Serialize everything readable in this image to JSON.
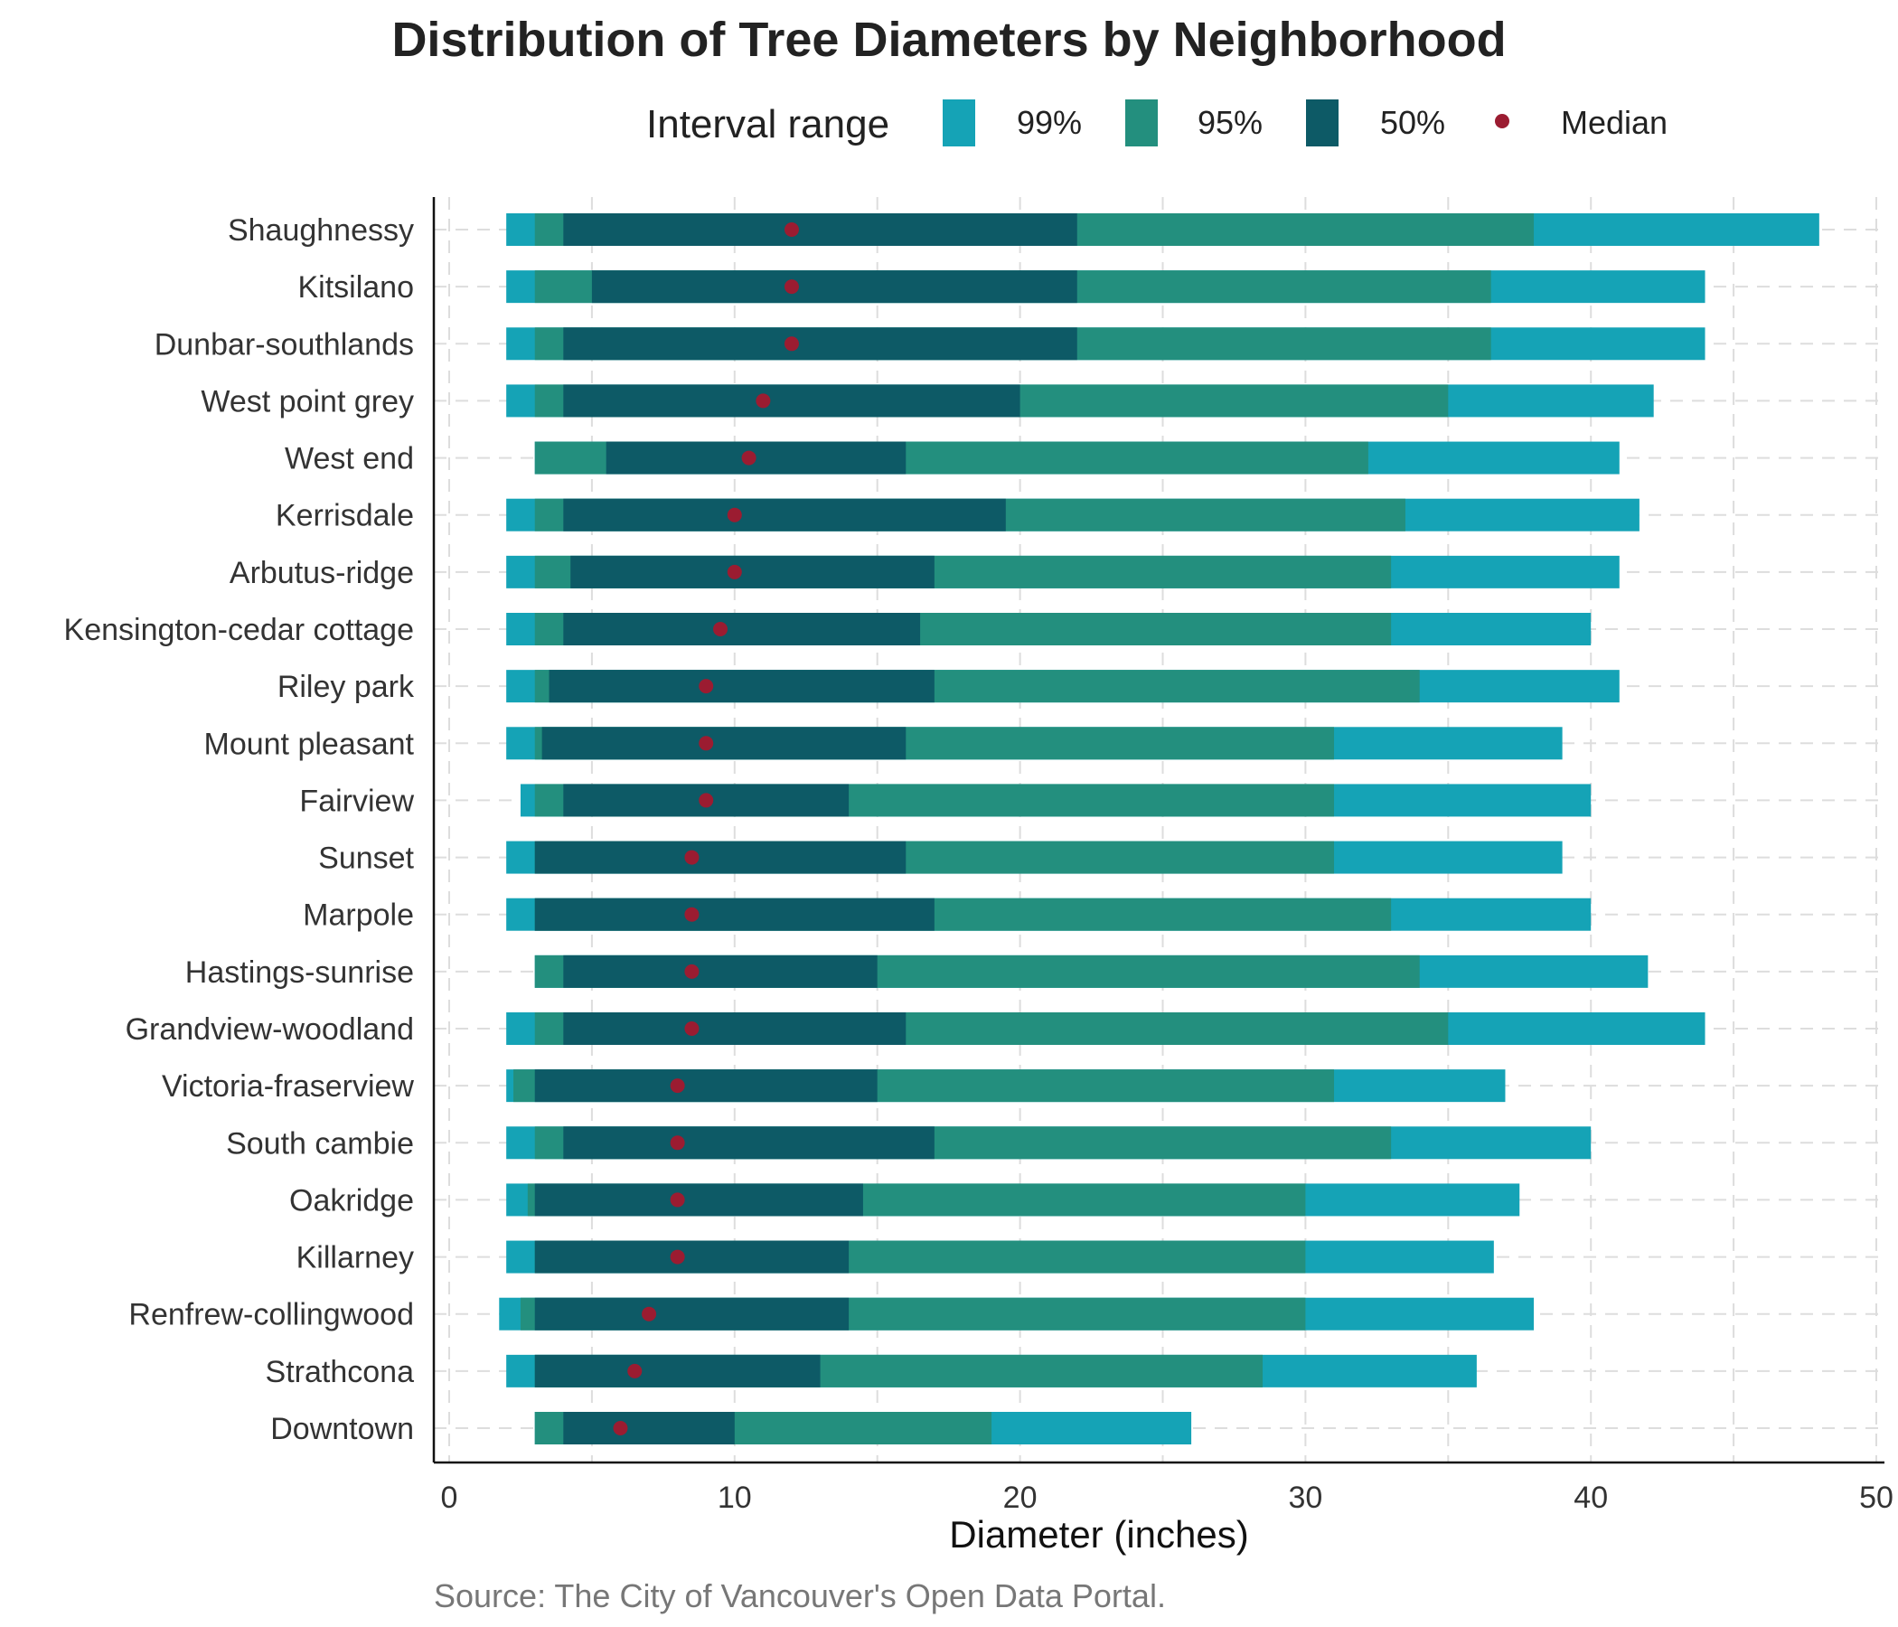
{
  "chart_data": {
    "type": "bar",
    "title": "Distribution of Tree Diameters by Neighborhood",
    "xlabel": "Diameter (inches)",
    "ylabel": "",
    "caption": "Source: The City of Vancouver's Open Data Portal.",
    "xlim": [
      0,
      50
    ],
    "xticks": [
      0,
      10,
      20,
      30,
      40,
      50
    ],
    "grid": true,
    "legend": {
      "title": "Interval range",
      "position": "top",
      "items": [
        {
          "label": "99%",
          "color": "#15a3b6",
          "shape": "square"
        },
        {
          "label": "95%",
          "color": "#238f7e",
          "shape": "square"
        },
        {
          "label": "50%",
          "color": "#0d5a66",
          "shape": "square"
        },
        {
          "label": "Median",
          "color": "#9b1c31",
          "shape": "dot"
        }
      ]
    },
    "categories": [
      "Shaughnessy",
      "Kitsilano",
      "Dunbar-southlands",
      "West point grey",
      "West end",
      "Kerrisdale",
      "Arbutus-ridge",
      "Kensington-cedar cottage",
      "Riley park",
      "Mount pleasant",
      "Fairview",
      "Sunset",
      "Marpole",
      "Hastings-sunrise",
      "Grandview-woodland",
      "Victoria-fraserview",
      "South cambie",
      "Oakridge",
      "Killarney",
      "Renfrew-collingwood",
      "Strathcona",
      "Downtown"
    ],
    "intervals": {
      "99%": [
        [
          2,
          48
        ],
        [
          2,
          44
        ],
        [
          2,
          44
        ],
        [
          2,
          42.2
        ],
        [
          3,
          41
        ],
        [
          2,
          41.7
        ],
        [
          2,
          41
        ],
        [
          2,
          40
        ],
        [
          2,
          41
        ],
        [
          2,
          39
        ],
        [
          2.5,
          40
        ],
        [
          2,
          39
        ],
        [
          2,
          40
        ],
        [
          3,
          42
        ],
        [
          2,
          44
        ],
        [
          2,
          37
        ],
        [
          2,
          40
        ],
        [
          2,
          37.5
        ],
        [
          2,
          36.6
        ],
        [
          1.75,
          38
        ],
        [
          2,
          36
        ],
        [
          3,
          26
        ]
      ],
      "95%": [
        [
          3,
          38
        ],
        [
          3,
          36.5
        ],
        [
          3,
          36.5
        ],
        [
          3,
          35
        ],
        [
          3,
          32.2
        ],
        [
          3,
          33.5
        ],
        [
          3,
          33
        ],
        [
          3,
          33
        ],
        [
          3,
          34
        ],
        [
          3,
          31
        ],
        [
          3,
          31
        ],
        [
          3,
          31
        ],
        [
          3,
          33
        ],
        [
          3,
          34
        ],
        [
          3,
          35
        ],
        [
          2.25,
          31
        ],
        [
          3,
          33
        ],
        [
          2.75,
          30
        ],
        [
          3,
          30
        ],
        [
          2.5,
          30
        ],
        [
          3,
          28.5
        ],
        [
          3,
          19
        ]
      ],
      "50%": [
        [
          4,
          22
        ],
        [
          5,
          22
        ],
        [
          4,
          22
        ],
        [
          4,
          20
        ],
        [
          5.5,
          16
        ],
        [
          4,
          19.5
        ],
        [
          4.25,
          17
        ],
        [
          4,
          16.5
        ],
        [
          3.5,
          17
        ],
        [
          3.25,
          16
        ],
        [
          4,
          14
        ],
        [
          3,
          16
        ],
        [
          3,
          17
        ],
        [
          4,
          15
        ],
        [
          4,
          16
        ],
        [
          3,
          15
        ],
        [
          4,
          17
        ],
        [
          3,
          14.5
        ],
        [
          3,
          14
        ],
        [
          3,
          14
        ],
        [
          3,
          13
        ],
        [
          4,
          10
        ]
      ]
    },
    "medians": [
      12,
      12,
      12,
      11,
      10.5,
      10,
      10,
      9.5,
      9,
      9,
      9,
      8.5,
      8.5,
      8.5,
      8.5,
      8,
      8,
      8,
      8,
      7,
      6.5,
      6
    ]
  }
}
